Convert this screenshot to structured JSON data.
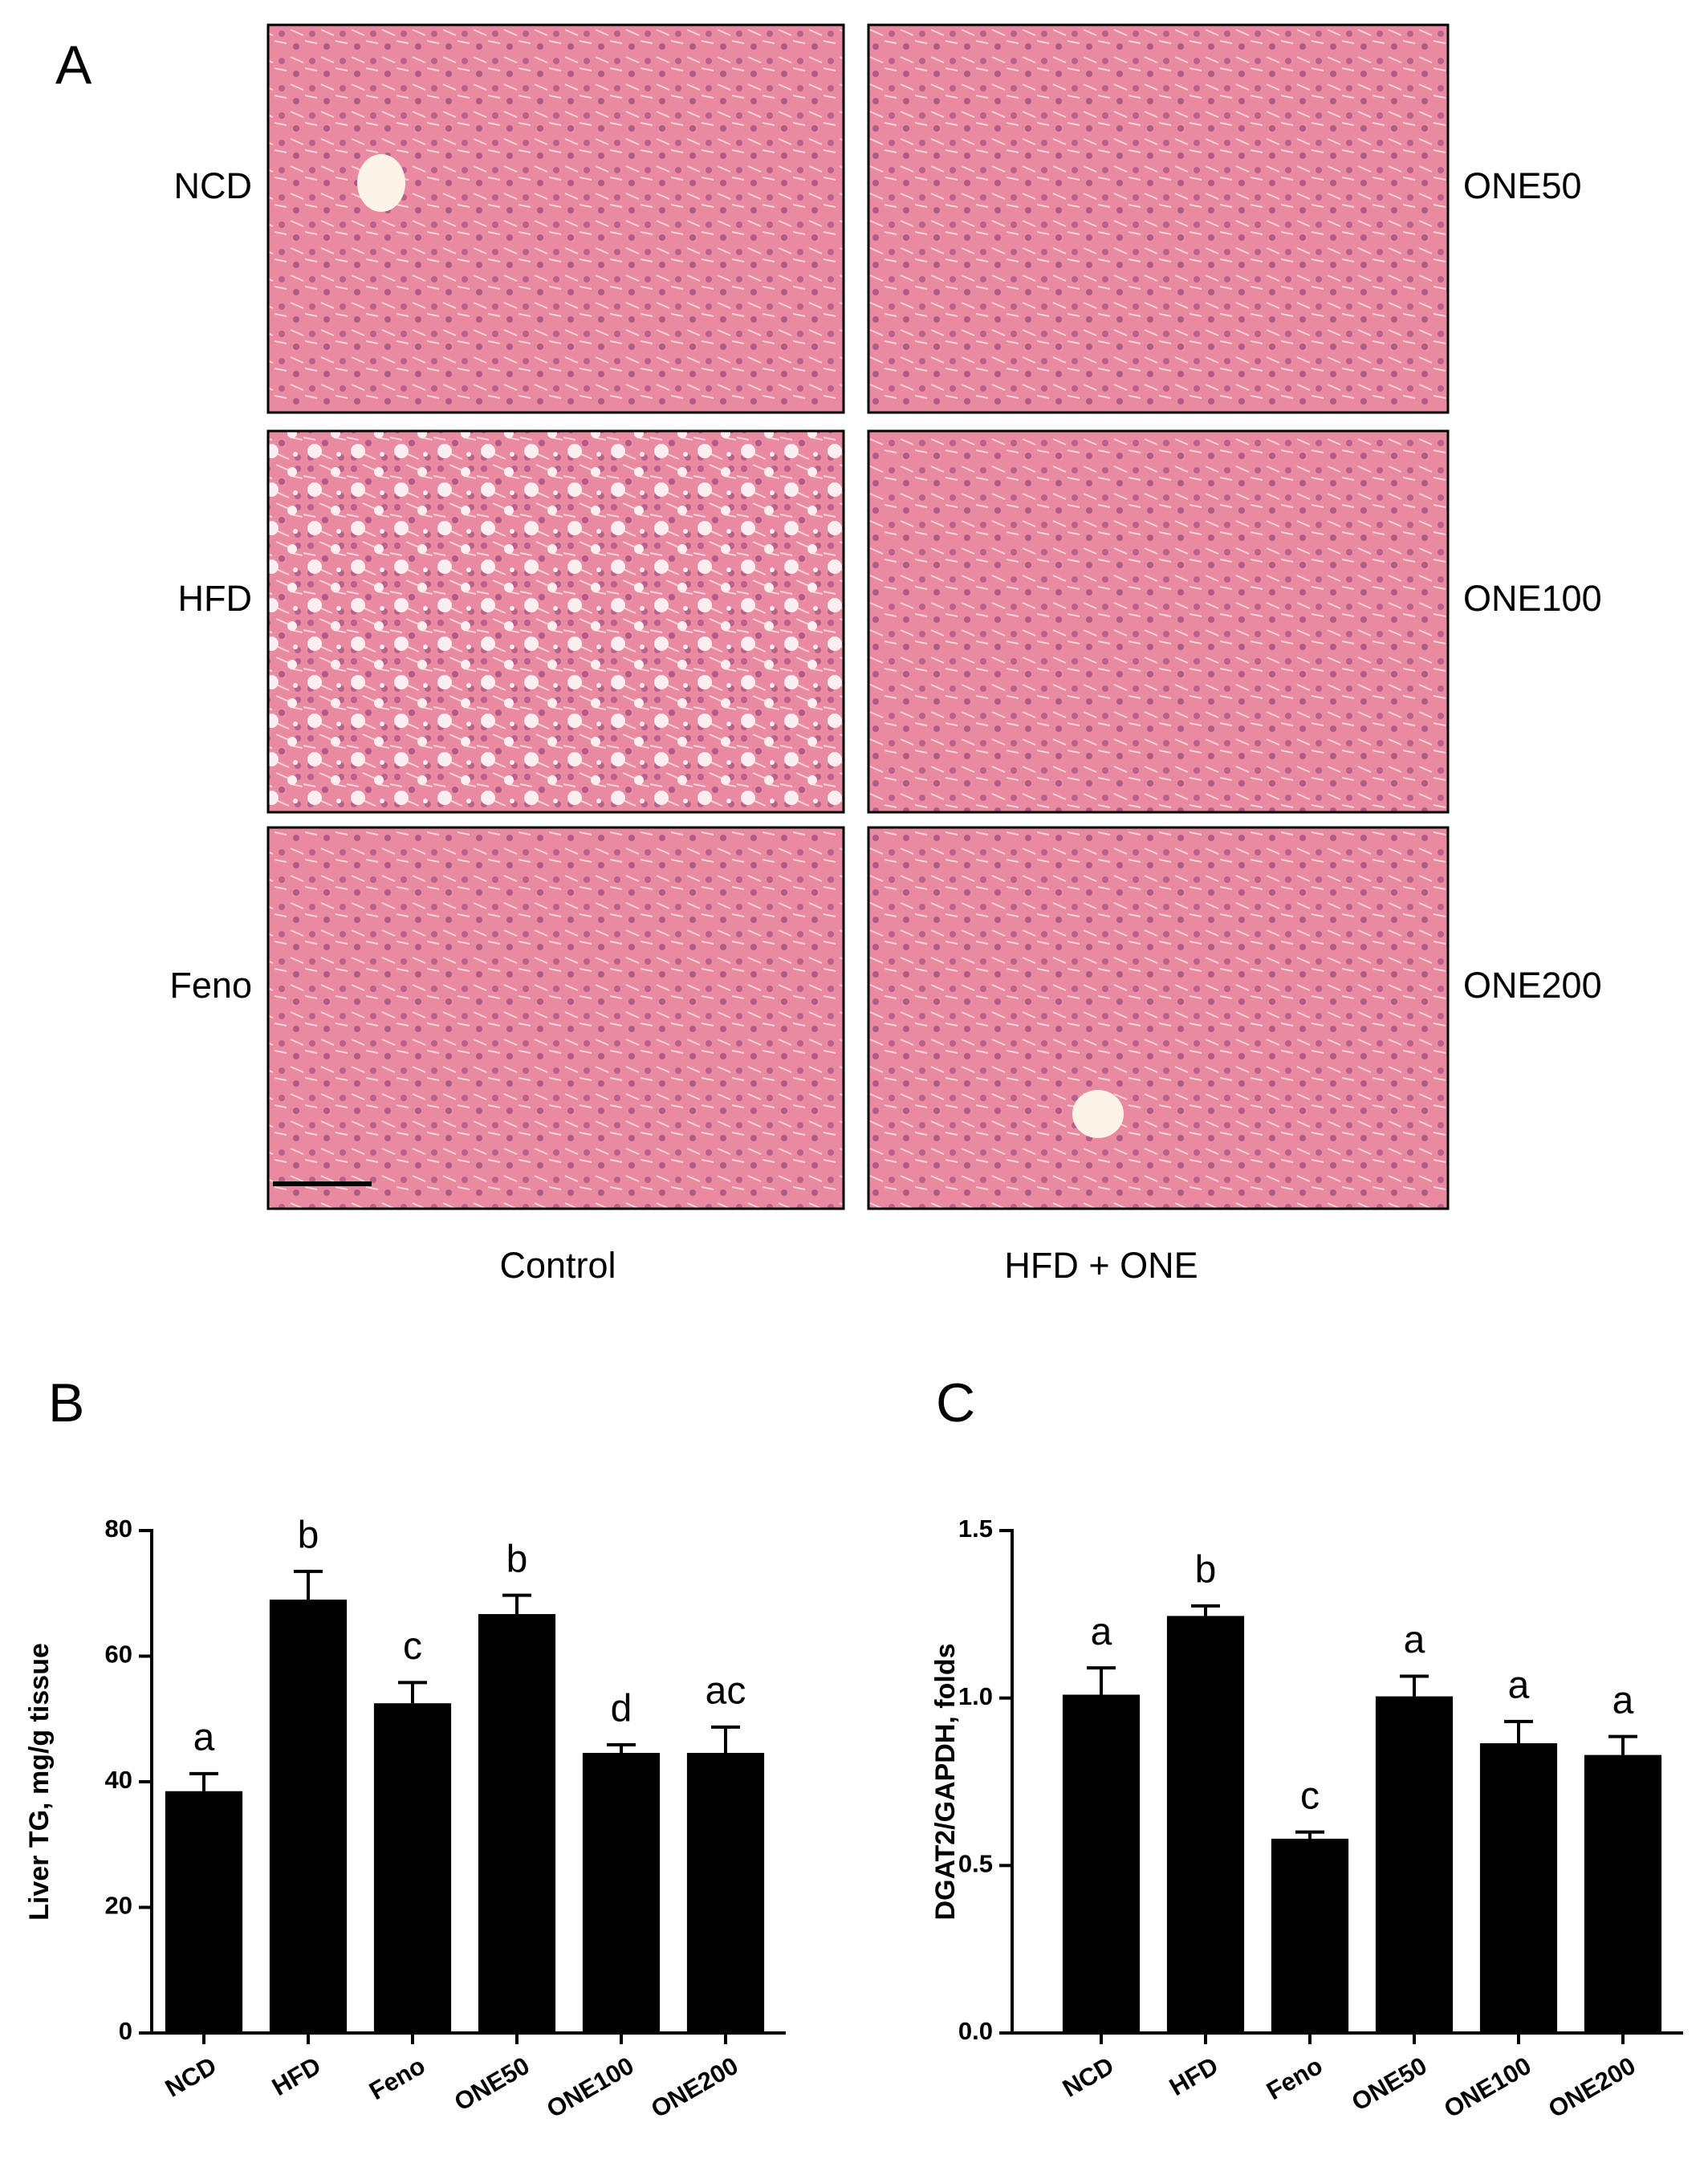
{
  "panel_a": {
    "label": "A",
    "left_labels": [
      "NCD",
      "HFD",
      "Feno"
    ],
    "right_labels": [
      "ONE50",
      "ONE100",
      "ONE200"
    ],
    "columns": [
      "Control",
      "HFD + ONE"
    ]
  },
  "chart_data": [
    {
      "type": "bar",
      "panel": "B",
      "ylabel": "Liver TG, mg/g tissue",
      "categories": [
        "NCD",
        "HFD",
        "Feno",
        "ONE50",
        "ONE100",
        "ONE200"
      ],
      "values": [
        38.5,
        69,
        52.5,
        66.7,
        44.6,
        44.6
      ],
      "errors": [
        2.8,
        4.5,
        3.3,
        3,
        1.3,
        4.1
      ],
      "annotations": [
        "a",
        "b",
        "c",
        "b",
        "d",
        "ac"
      ],
      "color": "#000000",
      "ylim": [
        0,
        80
      ],
      "yticks": [
        0,
        20,
        40,
        60,
        80
      ]
    },
    {
      "type": "bar",
      "panel": "C",
      "ylabel": "DGAT2/GAPDH, folds",
      "categories": [
        "NCD",
        "HFD",
        "Feno",
        "ONE50",
        "ONE100",
        "ONE200"
      ],
      "values": [
        1.01,
        1.245,
        0.58,
        1.005,
        0.865,
        0.83
      ],
      "errors": [
        0.08,
        0.03,
        0.02,
        0.06,
        0.065,
        0.055
      ],
      "annotations": [
        "a",
        "b",
        "c",
        "a",
        "a",
        "a"
      ],
      "color": "#000000",
      "ylim": [
        0,
        1.5
      ],
      "yticks": [
        {
          "value": 0,
          "label": "0.0"
        },
        0.5,
        {
          "value": 1,
          "label": "1.0"
        },
        1.5
      ]
    }
  ]
}
